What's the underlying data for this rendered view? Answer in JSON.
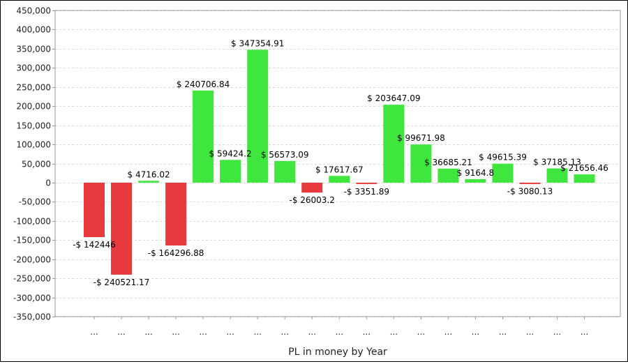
{
  "chart_data": {
    "type": "bar",
    "title": "",
    "xlabel": "PL in money by Year",
    "ylabel": "",
    "ylim": [
      -350000,
      450000
    ],
    "ytick_step": 50000,
    "ytick_labels": [
      "450,000",
      "400,000",
      "350,000",
      "300,000",
      "250,000",
      "200,000",
      "150,000",
      "100,000",
      "50,000",
      "0",
      "-50,000",
      "-100,000",
      "-150,000",
      "-200,000",
      "-250,000",
      "-300,000",
      "-350,000"
    ],
    "grid": true,
    "legend": "none",
    "categories": [
      "...",
      "...",
      "...",
      "...",
      "...",
      "...",
      "...",
      "...",
      "...",
      "...",
      "...",
      "...",
      "...",
      "...",
      "...",
      "...",
      "...",
      "...",
      "..."
    ],
    "values": [
      -142446,
      -240521.17,
      4716.02,
      -164296.88,
      240706.84,
      59424.2,
      347354.91,
      56573.09,
      -26003.2,
      17617.67,
      -3351.89,
      203647.09,
      99671.98,
      36685.21,
      9164.8,
      49615.39,
      -3080.13,
      37185.13,
      21656.46
    ],
    "data_labels": [
      "-$ 142446",
      "-$ 240521.17",
      "$ 4716.02",
      "-$ 164296.88",
      "$ 240706.84",
      "$ 59424.2",
      "$ 347354.91",
      "$ 56573.09",
      "-$ 26003.2",
      "$ 17617.67",
      "-$ 3351.89",
      "$ 203647.09",
      "$ 99671.98",
      "$ 36685.21",
      "$ 9164.8",
      "$ 49615.39",
      "-$ 3080.13",
      "$ 37185.13",
      "$ 21656.46"
    ],
    "colors": {
      "positive": "#3ee63e",
      "negative": "#e63a3e",
      "grid": "#d9d9d9",
      "axis": "#999999"
    }
  }
}
